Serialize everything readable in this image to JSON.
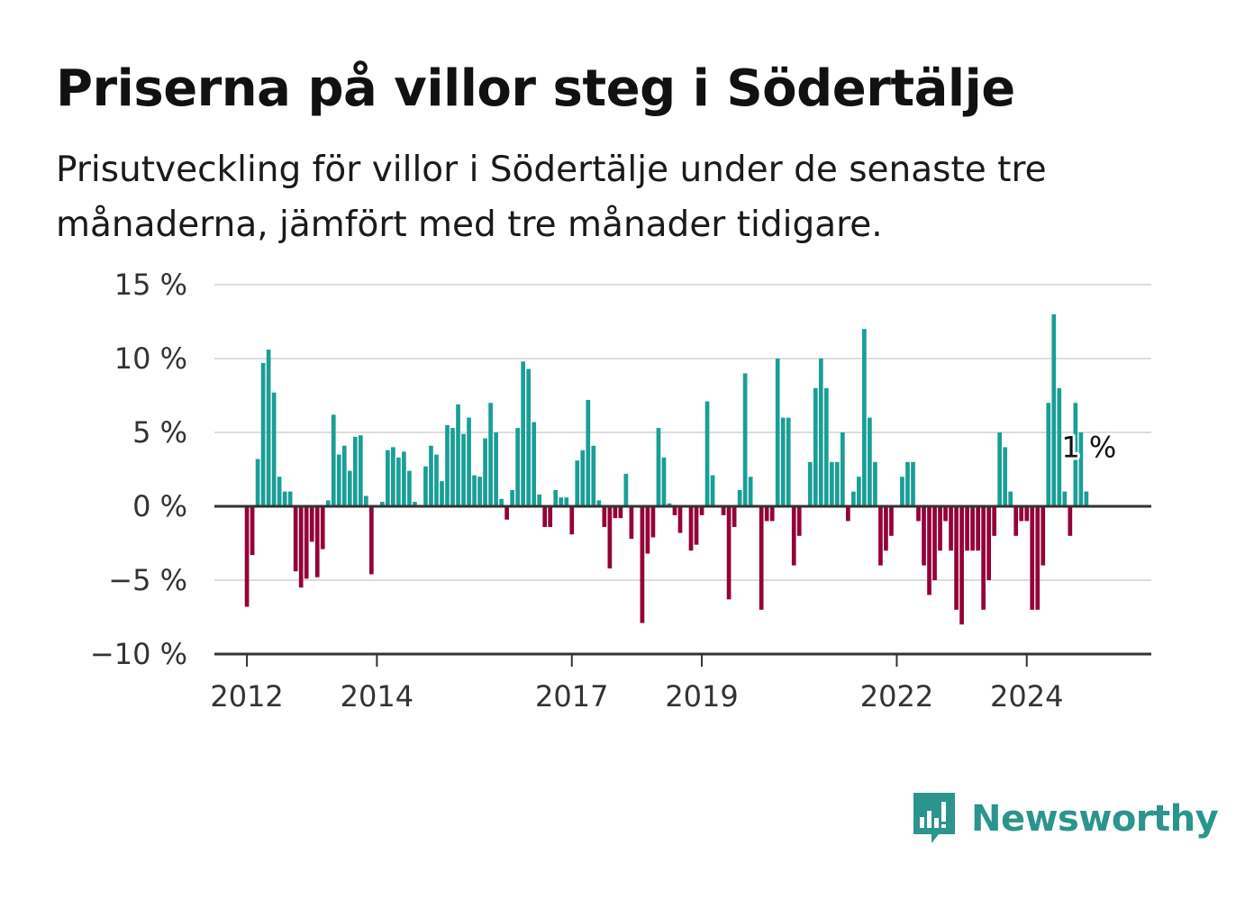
{
  "header": {
    "title": "Priserna på villor steg i Södertälje",
    "subtitle": "Prisutveckling för villor i Södertälje under de senaste tre månaderna, jämfört med tre månader tidigare."
  },
  "logo": {
    "text": "Newsworthy",
    "icon": "bar-chart-speech-bubble-icon",
    "color": "#2a948d"
  },
  "colors": {
    "positive": "#1a9e96",
    "negative": "#940038",
    "grid": "#dddddd",
    "axis": "#333333"
  },
  "chart_data": {
    "type": "bar",
    "title": "Priserna på villor steg i Södertälje",
    "xlabel": "",
    "ylabel": "",
    "unit": "%",
    "ylim": [
      -10,
      15
    ],
    "yticks": [
      {
        "value": 15,
        "label": "15 %"
      },
      {
        "value": 10,
        "label": "10 %"
      },
      {
        "value": 5,
        "label": "5 %"
      },
      {
        "value": 0,
        "label": "0 %"
      },
      {
        "value": -5,
        "label": "−5 %"
      },
      {
        "value": -10,
        "label": "−10 %"
      }
    ],
    "xlim": [
      "2011-07",
      "2025-12"
    ],
    "xticks": [
      {
        "value": "2012-01",
        "label": "2012"
      },
      {
        "value": "2014-01",
        "label": "2014"
      },
      {
        "value": "2017-01",
        "label": "2017"
      },
      {
        "value": "2019-01",
        "label": "2019"
      },
      {
        "value": "2022-01",
        "label": "2022"
      },
      {
        "value": "2024-01",
        "label": "2024"
      }
    ],
    "grid": true,
    "legend": "none",
    "start_month": "2012-01",
    "values": [
      -6.8,
      -3.3,
      3.2,
      9.7,
      10.6,
      7.7,
      2.0,
      1.0,
      1.0,
      -4.4,
      -5.5,
      -4.9,
      -2.4,
      -4.8,
      -2.9,
      0.4,
      6.2,
      3.5,
      4.1,
      2.4,
      4.7,
      4.8,
      0.7,
      -4.6,
      0.0,
      0.3,
      3.8,
      4.0,
      3.3,
      3.7,
      2.4,
      0.3,
      0.1,
      2.7,
      4.1,
      3.5,
      1.7,
      5.5,
      5.3,
      6.9,
      4.9,
      6.0,
      2.1,
      2.0,
      4.6,
      7.0,
      5.0,
      0.5,
      -0.9,
      1.1,
      5.3,
      9.8,
      9.3,
      5.7,
      0.8,
      -1.4,
      -1.4,
      1.1,
      0.6,
      0.6,
      -1.9,
      3.1,
      3.8,
      7.2,
      4.1,
      0.4,
      -1.4,
      -4.2,
      -0.8,
      -0.8,
      2.2,
      -2.2,
      0.0,
      -7.9,
      -3.2,
      -2.1,
      5.3,
      3.3,
      0.2,
      -0.6,
      -1.8,
      0.0,
      -3.0,
      -2.6,
      -0.6,
      7.1,
      2.1,
      0.0,
      -0.6,
      -6.3,
      -1.4,
      1.1,
      9.0,
      2.0,
      0.0,
      -7.0,
      -1.0,
      -1.0,
      10.0,
      6.0,
      6.0,
      -4.0,
      -2.0,
      0.0,
      3.0,
      8.0,
      10.0,
      8.0,
      3.0,
      3.0,
      5.0,
      -1.0,
      1.0,
      2.0,
      12.0,
      6.0,
      3.0,
      -4.0,
      -3.0,
      -2.0,
      0.0,
      2.0,
      3.0,
      3.0,
      -1.0,
      -4.0,
      -6.0,
      -5.0,
      -3.0,
      -1.0,
      -3.0,
      -7.0,
      -8.0,
      -3.0,
      -3.0,
      -3.0,
      -7.0,
      -5.0,
      -2.0,
      5.0,
      4.0,
      1.0,
      -2.0,
      -1.0,
      -1.0,
      -7.0,
      -7.0,
      -4.0,
      7.0,
      13.0,
      8.0,
      1.0,
      -2.0,
      7.0,
      5.0,
      1.0
    ],
    "annotations": [
      {
        "label": "1 %",
        "value": 1,
        "month": "2024-12"
      }
    ]
  }
}
